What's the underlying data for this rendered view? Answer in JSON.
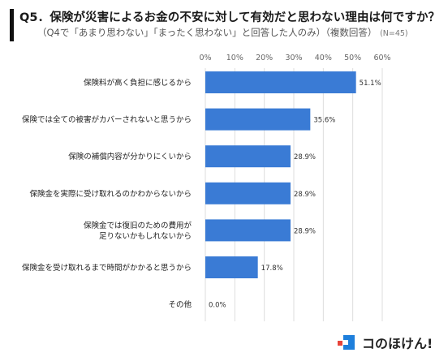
{
  "title": "Q5．保険が災害によるお金の不安に対して有効だと思わない理由は何ですか？",
  "subtitle": "（Q4で「あまり思わない」「まったく思わない」と回答した人のみ）（複数回答）",
  "sample_note": "(N=45)",
  "brand": {
    "name": "コのほけん!"
  },
  "colors": {
    "bar": "#3a7bd5",
    "grid": "#dddddd",
    "accent_red": "#e8443a",
    "accent_blue": "#1e7fdc"
  },
  "chart_data": {
    "type": "bar",
    "orientation": "horizontal",
    "categories": [
      [
        "保険料が高く負担に感じるから"
      ],
      [
        "保険では全ての被害がカバーされないと思うから"
      ],
      [
        "保険の補償内容が分かりにくいから"
      ],
      [
        "保険金を実際に受け取れるのかわからないから"
      ],
      [
        "保険金では復旧のための費用が",
        "足りないかもしれないから"
      ],
      [
        "保険金を受け取れるまで時間がかかると思うから"
      ],
      [
        "その他"
      ]
    ],
    "values": [
      51.1,
      35.6,
      28.9,
      28.9,
      28.9,
      17.8,
      0.0
    ],
    "value_labels": [
      "51.1%",
      "35.6%",
      "28.9%",
      "28.9%",
      "28.9%",
      "17.8%",
      "0.0%"
    ],
    "xlim": [
      0,
      60
    ],
    "ticks": [
      0,
      10,
      20,
      30,
      40,
      50,
      60
    ],
    "tick_labels": [
      "0%",
      "10%",
      "20%",
      "30%",
      "40%",
      "50%",
      "60%"
    ],
    "grid": true,
    "axis_position": "top"
  }
}
